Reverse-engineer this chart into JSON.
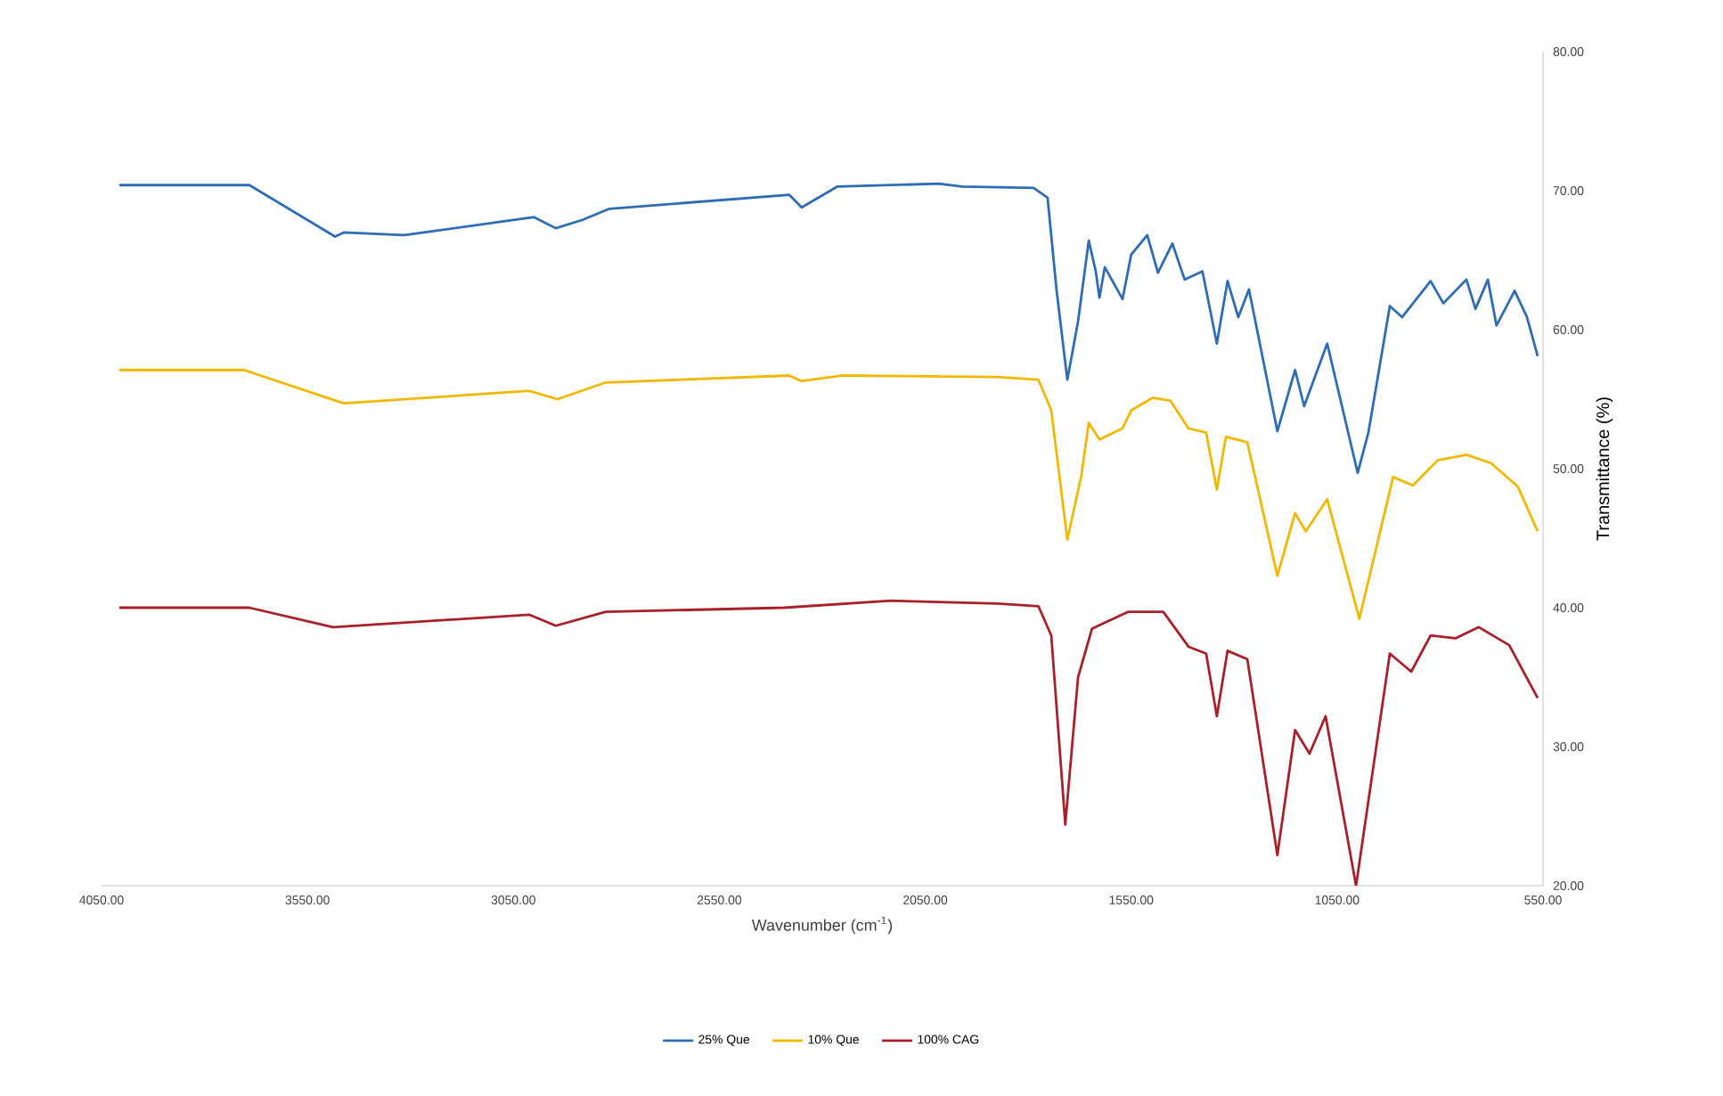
{
  "chart_data": {
    "type": "line",
    "xlabel": "Wavenumber (cm$^{-1}$)",
    "ylabel": "Transmittance (%)",
    "xlim": [
      4050,
      550
    ],
    "ylim": [
      20,
      80
    ],
    "xticks": [
      {
        "value": 4050,
        "label": "4050.00"
      },
      {
        "value": 3550,
        "label": "3550.00"
      },
      {
        "value": 3050,
        "label": "3050.00"
      },
      {
        "value": 2550,
        "label": "2550.00"
      },
      {
        "value": 2050,
        "label": "2050.00"
      },
      {
        "value": 1550,
        "label": "1550.00"
      },
      {
        "value": 1050,
        "label": "1050.00"
      },
      {
        "value": 550,
        "label": "550.00"
      }
    ],
    "yticks": [
      {
        "value": 20,
        "label": "20.00"
      },
      {
        "value": 30,
        "label": "30.00"
      },
      {
        "value": 40,
        "label": "40.00"
      },
      {
        "value": 50,
        "label": "50.00"
      },
      {
        "value": 60,
        "label": "60.00"
      },
      {
        "value": 70,
        "label": "70.00"
      },
      {
        "value": 80,
        "label": "80.00"
      }
    ],
    "grid": false,
    "legend": "bottom",
    "marker": "none",
    "line_style": "solid",
    "series": [
      {
        "name": "25% Que",
        "color": "#2e6db4",
        "x": [
          4007,
          3691,
          3483,
          3461,
          3315,
          3000,
          2947,
          2882,
          2817,
          2380,
          2350,
          2263,
          2017,
          1960,
          1787,
          1753,
          1731,
          1705,
          1679,
          1653,
          1636,
          1627,
          1614,
          1571,
          1550,
          1511,
          1485,
          1450,
          1420,
          1377,
          1342,
          1316,
          1290,
          1264,
          1195,
          1152,
          1130,
          1074,
          1000,
          974,
          922,
          892,
          823,
          792,
          736,
          714,
          684,
          663,
          619,
          589,
          563
        ],
        "values": [
          70.4,
          70.4,
          66.7,
          67.0,
          66.8,
          68.1,
          67.3,
          67.9,
          68.7,
          69.7,
          68.8,
          70.3,
          70.5,
          70.3,
          70.2,
          69.5,
          62.8,
          56.4,
          60.6,
          66.4,
          64.2,
          62.3,
          64.5,
          62.2,
          65.4,
          66.8,
          64.1,
          66.2,
          63.6,
          64.2,
          59.0,
          63.5,
          60.9,
          62.9,
          52.7,
          57.1,
          54.5,
          59.0,
          49.7,
          52.6,
          61.7,
          60.9,
          63.5,
          61.9,
          63.6,
          61.5,
          63.6,
          60.3,
          62.8,
          60.9,
          58.1
        ]
      },
      {
        "name": "10% Que",
        "color": "#f0b800",
        "x": [
          4007,
          3704,
          3462,
          3012,
          2943,
          2826,
          2380,
          2350,
          2250,
          1874,
          1775,
          1744,
          1705,
          1671,
          1653,
          1627,
          1571,
          1550,
          1498,
          1455,
          1411,
          1368,
          1342,
          1320,
          1268,
          1195,
          1152,
          1126,
          1074,
          996,
          914,
          866,
          806,
          736,
          676,
          611,
          563
        ],
        "values": [
          57.1,
          57.1,
          54.7,
          55.6,
          55.0,
          56.2,
          56.7,
          56.3,
          56.7,
          56.6,
          56.4,
          54.2,
          44.9,
          49.5,
          53.3,
          52.1,
          52.9,
          54.2,
          55.1,
          54.9,
          52.9,
          52.6,
          48.5,
          52.3,
          51.9,
          42.3,
          46.8,
          45.5,
          47.8,
          39.2,
          49.4,
          48.8,
          50.6,
          51.0,
          50.4,
          48.7,
          45.5
        ]
      },
      {
        "name": "100% CAG",
        "color": "#a8202a",
        "x": [
          4007,
          3691,
          3488,
          3012,
          2947,
          2826,
          2393,
          2134,
          1874,
          1775,
          1744,
          1710,
          1679,
          1645,
          1558,
          1472,
          1411,
          1368,
          1342,
          1316,
          1268,
          1195,
          1152,
          1117,
          1078,
          1004,
          922,
          870,
          823,
          762,
          706,
          632,
          563
        ],
        "values": [
          40.0,
          40.0,
          38.6,
          39.5,
          38.7,
          39.7,
          40.0,
          40.5,
          40.3,
          40.1,
          38.0,
          24.4,
          35.0,
          38.5,
          39.7,
          39.7,
          37.2,
          36.7,
          32.2,
          36.9,
          36.3,
          22.2,
          31.2,
          29.5,
          32.2,
          20.0,
          36.7,
          35.4,
          38.0,
          37.8,
          38.6,
          37.3,
          33.5
        ]
      }
    ]
  }
}
